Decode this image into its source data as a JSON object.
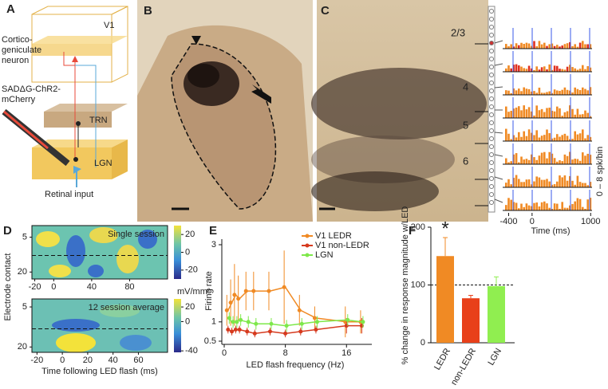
{
  "panel_labels": [
    "A",
    "B",
    "C",
    "D",
    "E",
    "F"
  ],
  "panel_a": {
    "area": "V1",
    "neuron": [
      "Cortico-",
      "geniculate",
      "neuron"
    ],
    "virus": [
      "SADΔG-ChR2-",
      "mCherry"
    ],
    "trn": "TRN",
    "lgn": "LGN",
    "retina": "Retinal input"
  },
  "panel_c": {
    "layers": [
      "2/3",
      "4",
      "5",
      "6"
    ],
    "raster": {
      "xlim": [
        -420,
        1010
      ],
      "xticks": [
        -400,
        0,
        1000
      ],
      "xlabel": "Time (ms)",
      "ylabel": "0 – 8 spk/bin"
    }
  },
  "panel_d": {
    "ylabel": "Electrode contact",
    "xlabel": "Time following LED flash (ms)",
    "top": {
      "title": "Single session",
      "xlim": [
        -23,
        120
      ],
      "xticks": [
        -20,
        0,
        40,
        80
      ],
      "ylim": [
        0,
        23
      ],
      "yticks": [
        5,
        20
      ],
      "colorbar": {
        "lim": [
          30,
          -30
        ],
        "ticks": [
          20,
          0,
          -20
        ],
        "unit": "mV/mm²"
      }
    },
    "bottom": {
      "title": "12 session average",
      "xlim": [
        -24,
        83
      ],
      "xticks": [
        -20,
        0,
        20,
        40,
        60
      ],
      "ylim": [
        2,
        22
      ],
      "yticks": [
        5,
        20
      ],
      "colorbar": {
        "lim": [
          31,
          -42
        ],
        "ticks": [
          20,
          0,
          -40
        ]
      }
    }
  },
  "chart_data": [
    {
      "type": "line",
      "xlabel": "LED flash frequency (Hz)",
      "ylabel": "Firing rate",
      "xlim": [
        0,
        19
      ],
      "xticks": [
        0,
        8,
        16
      ],
      "ylim": [
        0.5,
        3
      ],
      "yticks": [
        0.5,
        1,
        3
      ],
      "legend": "upper left",
      "x": [
        0.5,
        1,
        1.5,
        2,
        3,
        4,
        6,
        8,
        10,
        12,
        16,
        18
      ],
      "series": [
        {
          "name": "V1 LEDR",
          "color": "#f08a24",
          "values": [
            1.3,
            1.5,
            1.7,
            1.6,
            1.8,
            1.8,
            1.8,
            1.9,
            1.3,
            1.1,
            1.0,
            1.0
          ],
          "errors": [
            0.4,
            0.6,
            0.8,
            0.6,
            0.5,
            0.5,
            0.5,
            0.95,
            0.4,
            0.3,
            0.4,
            0.3
          ]
        },
        {
          "name": "V1 non-LEDR",
          "color": "#d63a1e",
          "values": [
            0.8,
            0.75,
            0.8,
            0.8,
            0.75,
            0.7,
            0.75,
            0.7,
            0.75,
            0.8,
            0.9,
            0.9
          ],
          "errors": [
            0.1,
            0.1,
            0.1,
            0.1,
            0.1,
            0.1,
            0.1,
            0.1,
            0.1,
            0.1,
            0.2,
            0.2
          ]
        },
        {
          "name": "LGN",
          "color": "#7ee84a",
          "values": [
            1.1,
            1.0,
            1.0,
            1.05,
            1.0,
            0.95,
            0.95,
            0.9,
            0.95,
            1.0,
            1.05,
            1.0
          ],
          "errors": [
            0.15,
            0.15,
            0.15,
            0.15,
            0.15,
            0.15,
            0.15,
            0.15,
            0.15,
            0.15,
            0.15,
            0.15
          ]
        }
      ]
    },
    {
      "type": "bar",
      "ylabel": "% change in response magnitude w/LED",
      "categories": [
        "LEDR",
        "non-LEDR",
        "LGN"
      ],
      "values": [
        150,
        77,
        98
      ],
      "errors": [
        32,
        5,
        16
      ],
      "colors": [
        "#f08a24",
        "#e8401a",
        "#90ee50"
      ],
      "ylim": [
        0,
        200
      ],
      "yticks": [
        0,
        100,
        200
      ],
      "reference": 100,
      "annotation": "*"
    }
  ]
}
